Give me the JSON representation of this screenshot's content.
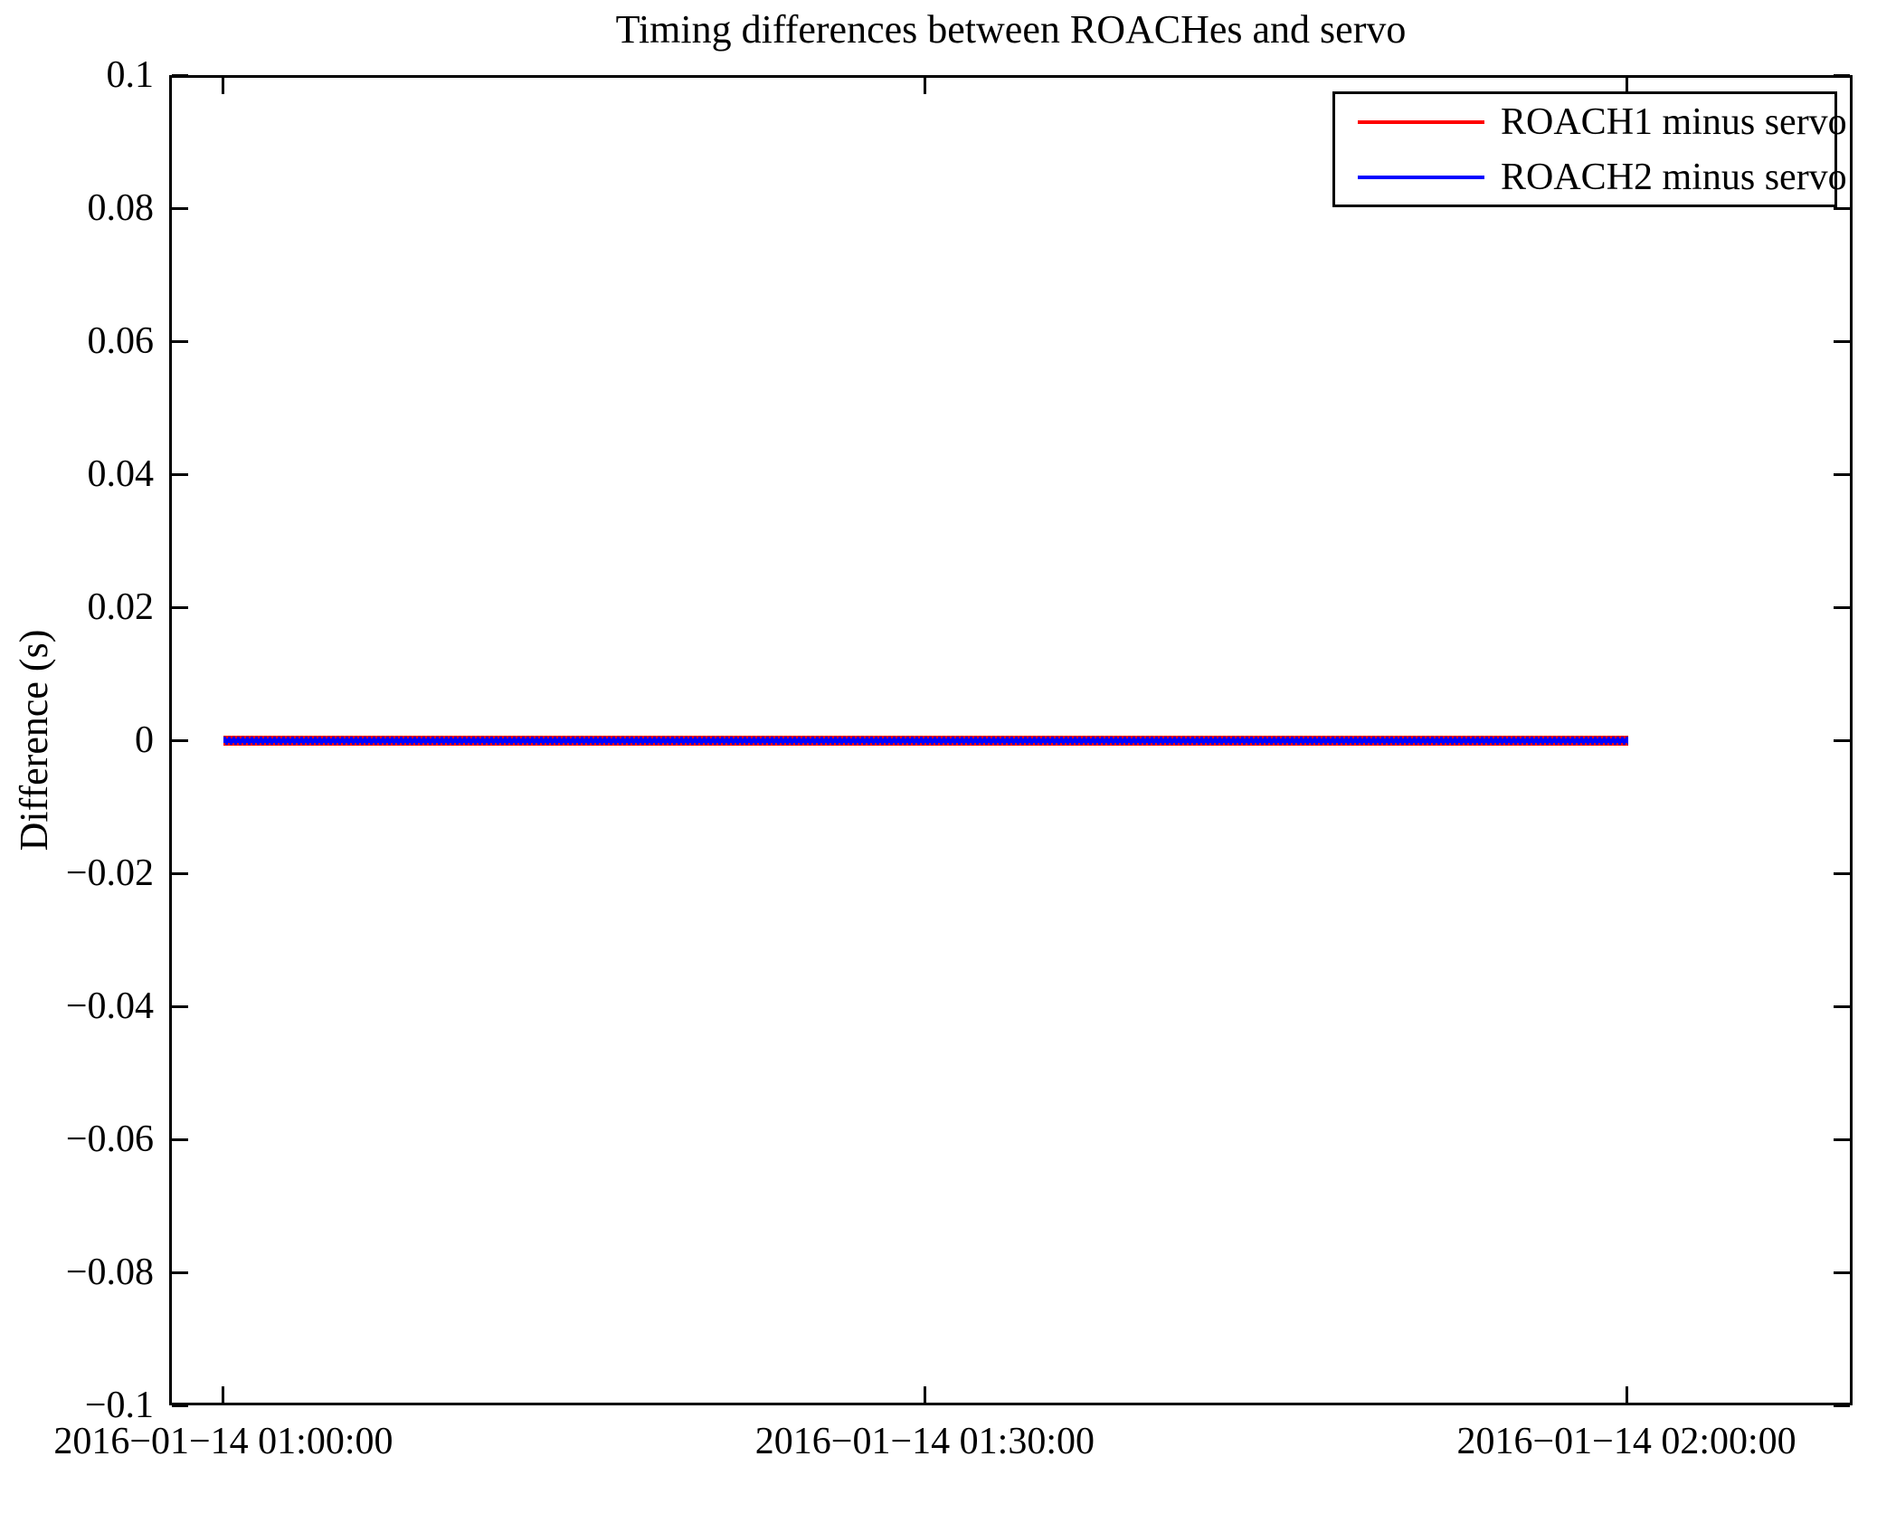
{
  "figure": {
    "background": "#ffffff",
    "axes_color": "#000000"
  },
  "chart_data": {
    "type": "line",
    "title": "Timing differences between ROACHes and servo",
    "xlabel": "",
    "ylabel": "Difference (s)",
    "ylim": [
      -0.1,
      0.1
    ],
    "grid": false,
    "legend_position": "upper right",
    "x_ticks": [
      {
        "label": "2016−01−14 01:00:00",
        "pos": 0.0322
      },
      {
        "label": "2016−01−14 01:30:00",
        "pos": 0.4489
      },
      {
        "label": "2016−01−14 02:00:00",
        "pos": 0.8657
      }
    ],
    "y_ticks": [
      {
        "label": "0.1",
        "value": 0.1
      },
      {
        "label": "0.08",
        "value": 0.08
      },
      {
        "label": "0.06",
        "value": 0.06
      },
      {
        "label": "0.04",
        "value": 0.04
      },
      {
        "label": "0.02",
        "value": 0.02
      },
      {
        "label": "0",
        "value": 0
      },
      {
        "label": "−0.02",
        "value": -0.02
      },
      {
        "label": "−0.04",
        "value": -0.04
      },
      {
        "label": "−0.06",
        "value": -0.06
      },
      {
        "label": "−0.08",
        "value": -0.08
      },
      {
        "label": "−0.1",
        "value": -0.1
      }
    ],
    "series": [
      {
        "name": "ROACH1 minus servo",
        "color": "#ff0000",
        "value": 0.0,
        "x_start_pos": 0.0322,
        "x_end_pos": 0.8668
      },
      {
        "name": "ROACH2 minus servo",
        "color": "#0000ff",
        "value": 0.0,
        "x_start_pos": 0.0322,
        "x_end_pos": 0.8668
      }
    ]
  }
}
